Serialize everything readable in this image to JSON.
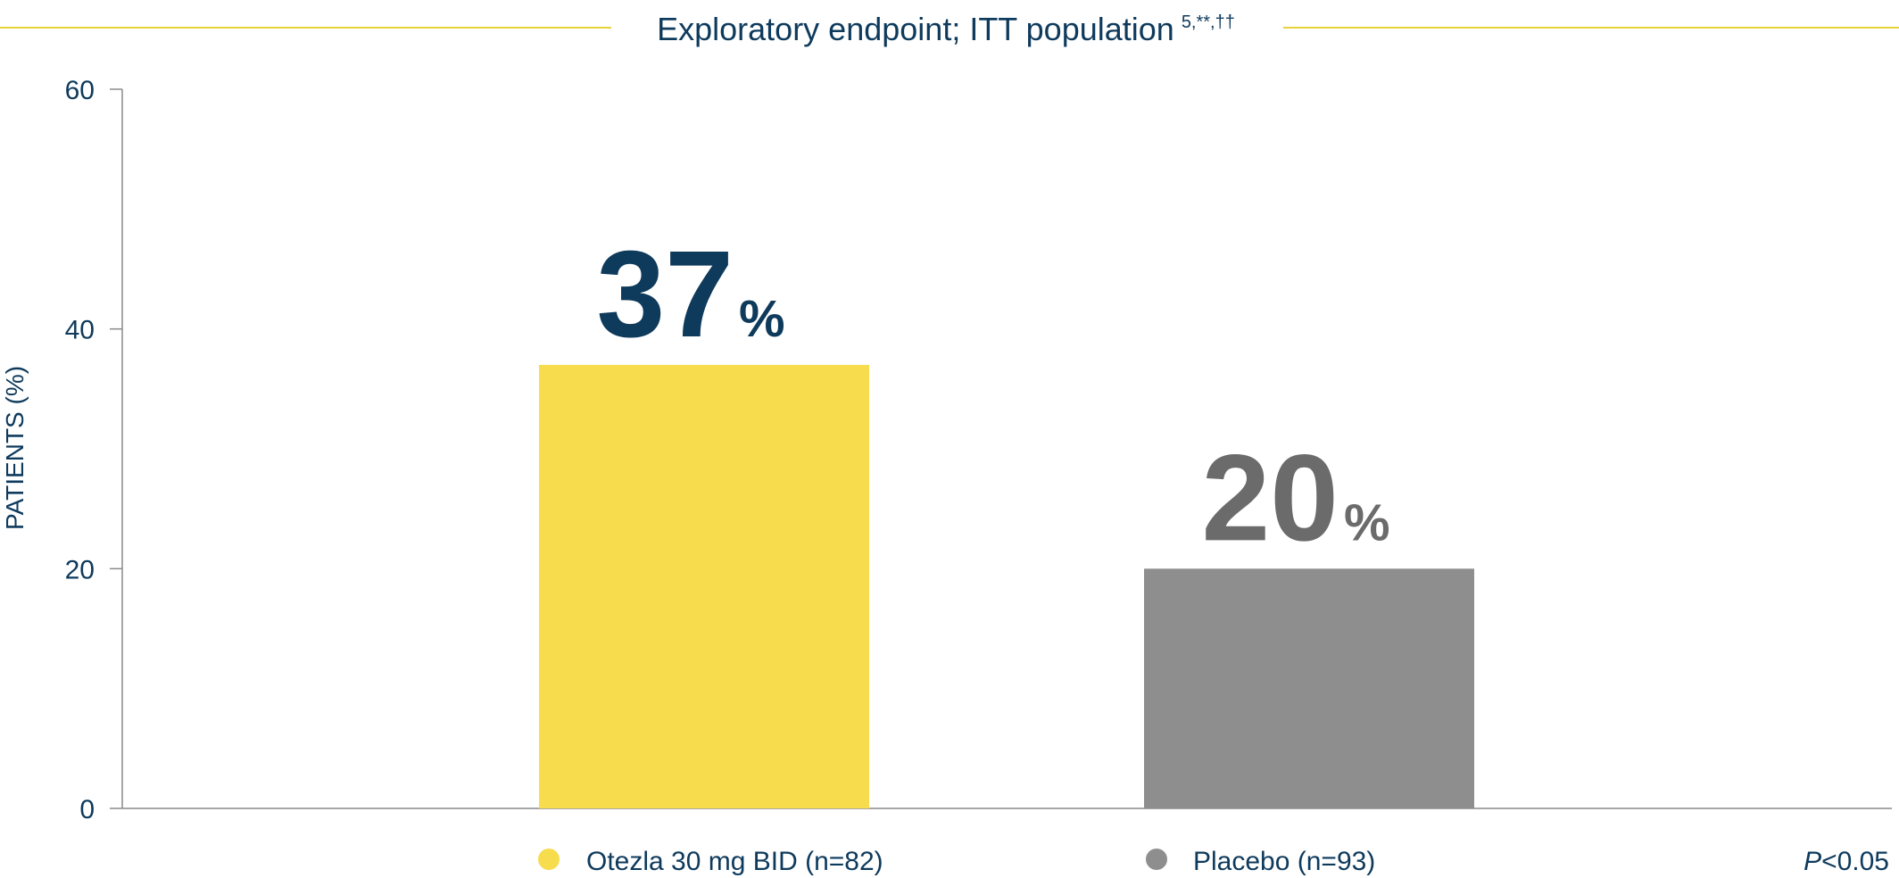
{
  "chart_data": {
    "type": "bar",
    "title": "Exploratory endpoint; ITT population",
    "title_superscript": "5,**,††",
    "categories": [
      "Otezla 30 mg BID (n=82)",
      "Placebo (n=93)"
    ],
    "values": [
      37,
      20
    ],
    "data_labels": [
      "37",
      "20"
    ],
    "data_label_unit": "%",
    "ylabel": "PATIENTS (%)",
    "xlabel": "",
    "ylim": [
      0,
      60
    ],
    "yticks": [
      0,
      20,
      40,
      60
    ],
    "grid": false,
    "legend": {
      "placement": "bottom",
      "entries": [
        "Otezla 30 mg BID (n=82)",
        "Placebo (n=93)"
      ]
    },
    "annotation": {
      "p_italic": "P",
      "p_rest": "<0.05"
    },
    "colors": {
      "bars": [
        "#f7dc4d",
        "#8f8e8e"
      ],
      "data_labels": [
        "#0e3a5c",
        "#6b6b6b"
      ],
      "text": "#0e3a5c",
      "title_rule": "#e8d23a",
      "axis": "#8a8a8a"
    }
  }
}
